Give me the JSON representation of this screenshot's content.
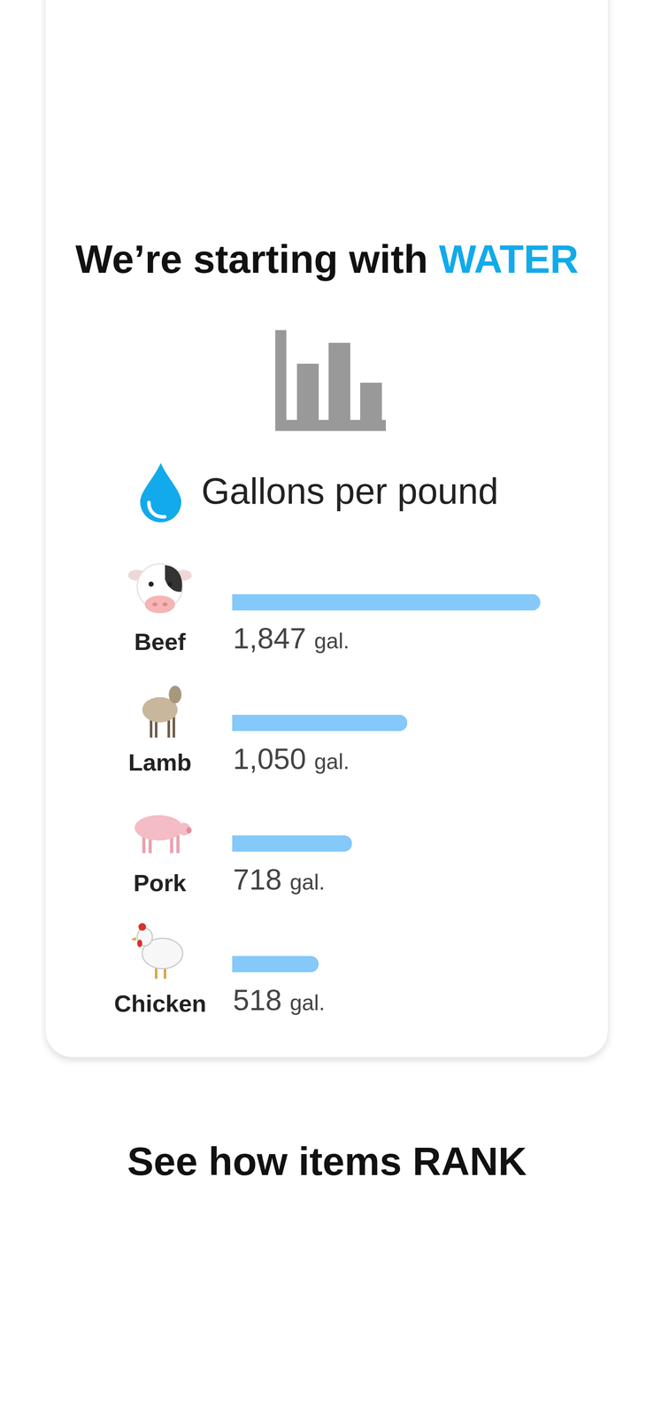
{
  "header": {
    "text": "We’re starting with",
    "highlight": "WATER"
  },
  "footer": "See how items RANK",
  "chart_data": {
    "type": "bar",
    "title": "Gallons per pound",
    "orientation": "horizontal",
    "categories": [
      "Beef",
      "Lamb",
      "Pork",
      "Chicken"
    ],
    "values": [
      1847,
      1050,
      718,
      518
    ],
    "value_labels": [
      "1,847 gal.",
      "1,050 gal.",
      "718 gal.",
      "518 gal."
    ],
    "color": "#85c8fa",
    "xlim": [
      0,
      1847
    ],
    "data_labels": true,
    "tick_labels": false,
    "grid": false
  }
}
